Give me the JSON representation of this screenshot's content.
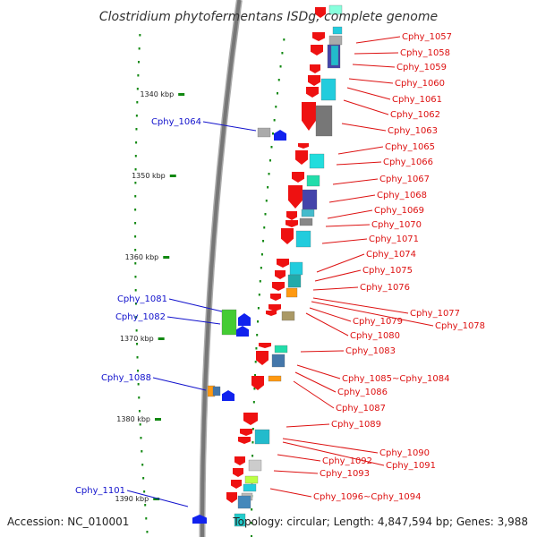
{
  "title": "Clostridium phytofermentans ISDg, complete genome",
  "footer": {
    "accession": "Accession: NC_010001",
    "topology": "Topology: circular; Length: 4,847,594 bp; Genes: 3,988"
  },
  "colors": {
    "backbone": "#777777",
    "forward_label": "#1111cc",
    "reverse_label": "#dd1111",
    "kbp_tick": "#118811"
  },
  "kbp_marks": [
    {
      "label": "1340 kbp",
      "pos_kbp": 1340
    },
    {
      "label": "1350 kbp",
      "pos_kbp": 1350
    },
    {
      "label": "1360 kbp",
      "pos_kbp": 1360
    },
    {
      "label": "1370 kbp",
      "pos_kbp": 1370
    },
    {
      "label": "1380 kbp",
      "pos_kbp": 1380
    },
    {
      "label": "1390 kbp",
      "pos_kbp": 1390
    }
  ],
  "forward_genes": [
    "Cphy_1064",
    "Cphy_1081",
    "Cphy_1082",
    "Cphy_1088",
    "Cphy_1101"
  ],
  "reverse_genes": [
    "Cphy_1057",
    "Cphy_1058",
    "Cphy_1059",
    "Cphy_1060",
    "Cphy_1061",
    "Cphy_1062",
    "Cphy_1063",
    "Cphy_1065",
    "Cphy_1066",
    "Cphy_1067",
    "Cphy_1068",
    "Cphy_1069",
    "Cphy_1070",
    "Cphy_1071",
    "Cphy_1074",
    "Cphy_1075",
    "Cphy_1076",
    "Cphy_1077",
    "Cphy_1078",
    "Cphy_1079",
    "Cphy_1080",
    "Cphy_1083",
    "Cphy_1085~Cphy_1084",
    "Cphy_1086",
    "Cphy_1087",
    "Cphy_1089",
    "Cphy_1090",
    "Cphy_1091",
    "Cphy_1092",
    "Cphy_1093",
    "Cphy_1096~Cphy_1094"
  ]
}
